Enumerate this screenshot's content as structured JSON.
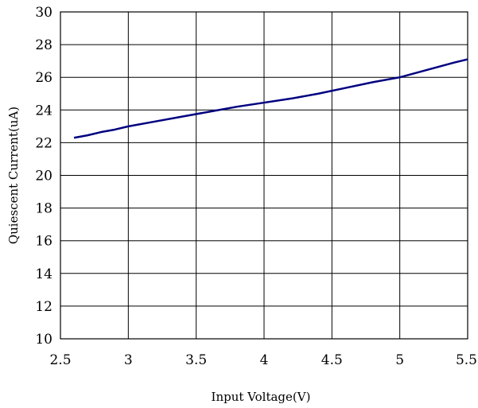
{
  "chart_data": {
    "type": "line",
    "xlabel": "Input Voltage(V)",
    "ylabel": "Quiescent Current(uA)",
    "xlim": [
      2.5,
      5.5
    ],
    "ylim": [
      10,
      30
    ],
    "x_ticks": [
      "2.5",
      "3",
      "3.5",
      "4",
      "4.5",
      "5",
      "5.5"
    ],
    "y_ticks": [
      "30",
      "28",
      "26",
      "24",
      "22",
      "20",
      "18",
      "16",
      "14",
      "12",
      "10"
    ],
    "grid": true,
    "series": [
      {
        "color": "#000080",
        "x": [
          2.6,
          2.7,
          2.8,
          2.9,
          3.0,
          3.2,
          3.4,
          3.6,
          3.8,
          4.0,
          4.2,
          4.4,
          4.6,
          4.8,
          5.0,
          5.2,
          5.4,
          5.5
        ],
        "y": [
          22.3,
          22.45,
          22.65,
          22.8,
          23.0,
          23.3,
          23.6,
          23.9,
          24.2,
          24.45,
          24.7,
          25.0,
          25.35,
          25.7,
          26.0,
          26.45,
          26.9,
          27.1
        ]
      }
    ]
  }
}
